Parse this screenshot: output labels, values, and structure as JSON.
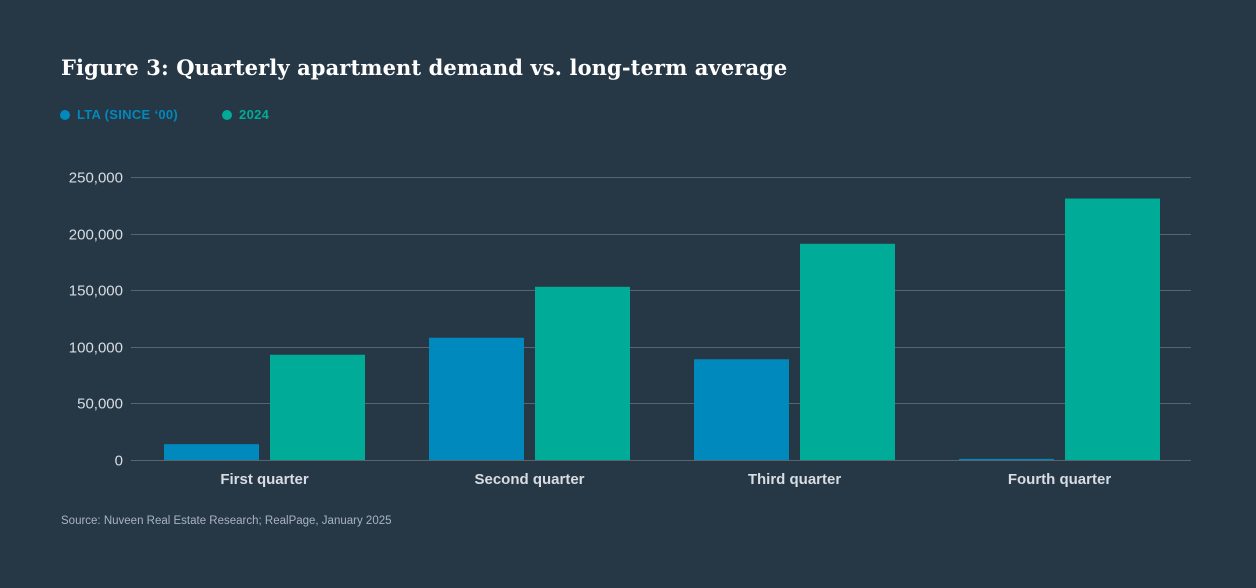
{
  "chart_data": {
    "type": "bar",
    "title": "Figure 3: Quarterly apartment demand vs. long-term average",
    "categories": [
      "First quarter",
      "Second quarter",
      "Third quarter",
      "Fourth quarter"
    ],
    "series": [
      {
        "name": "LTA (SINCE ‘00)",
        "color": "#0089bd",
        "values": [
          14000,
          108000,
          89000,
          1000
        ]
      },
      {
        "name": "2024",
        "color": "#00ab97",
        "values": [
          93000,
          153000,
          191000,
          231000
        ]
      }
    ],
    "yticks": [
      0,
      50000,
      100000,
      150000,
      200000,
      250000
    ],
    "ytick_labels": [
      "0",
      "50,000",
      "100,000",
      "150,000",
      "200,000",
      "250,000"
    ],
    "ylim": [
      0,
      250000
    ],
    "xlabel": "",
    "ylabel": "",
    "grid": true,
    "legend_position": "top-left"
  },
  "source": "Source: Nuveen Real Estate Research; RealPage, January 2025",
  "colors": {
    "background": "#263746",
    "grid": "#56656f",
    "text": "#d7dde2"
  }
}
